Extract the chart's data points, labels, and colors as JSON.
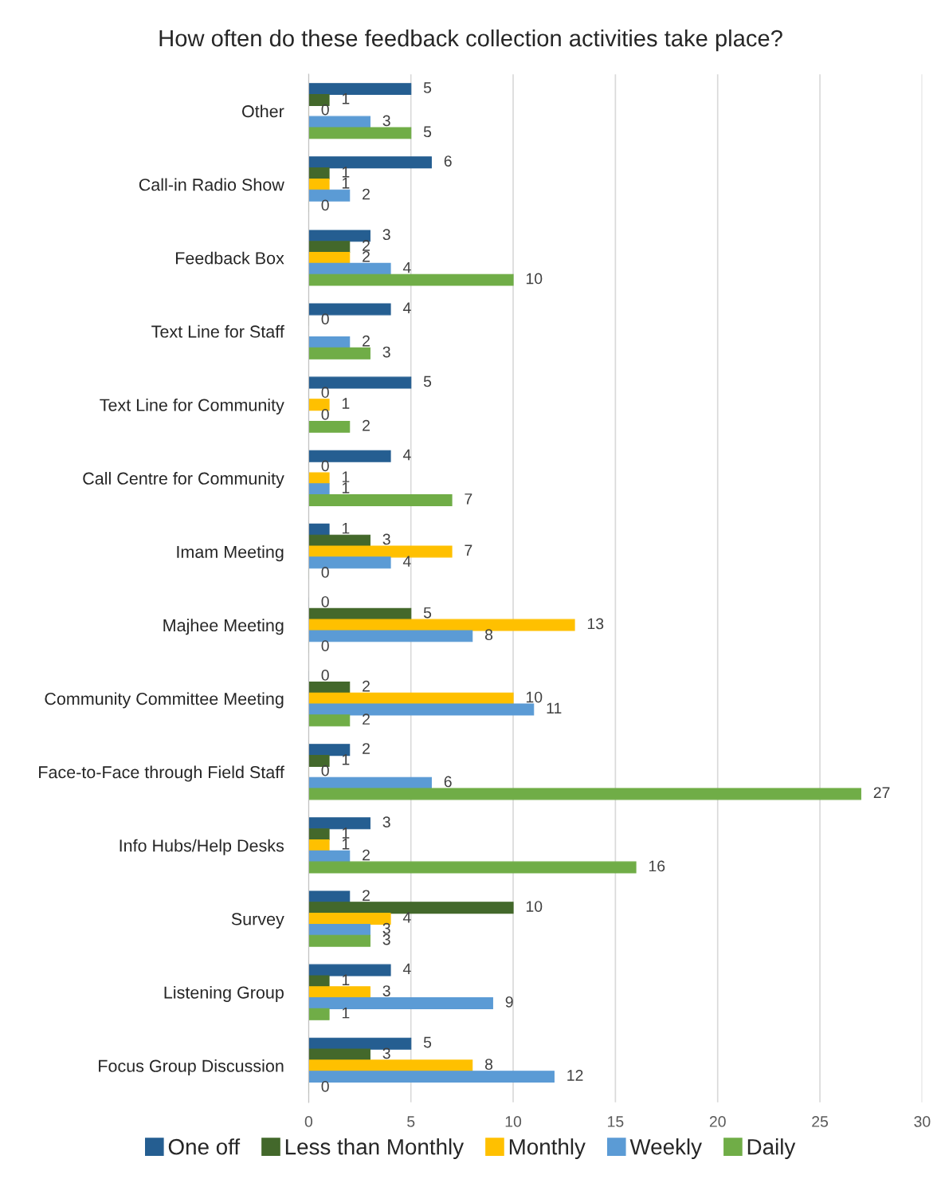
{
  "chart_data": {
    "type": "bar",
    "orientation": "horizontal",
    "title": "How often do these feedback collection activities take place?",
    "categories": [
      "Other",
      "Call-in Radio Show",
      "Feedback Box",
      "Text Line for Staff",
      "Text Line for Community",
      "Call Centre for Community",
      "Imam Meeting",
      "Majhee Meeting",
      "Community Committee Meeting",
      "Face-to-Face through Field Staff",
      "Info Hubs/Help Desks",
      "Survey",
      "Listening Group",
      "Focus Group Discussion"
    ],
    "series": [
      {
        "name": "One off",
        "color": "#255e91",
        "values": [
          5,
          6,
          3,
          4,
          5,
          4,
          1,
          0,
          0,
          2,
          3,
          2,
          4,
          5
        ]
      },
      {
        "name": "Less than Monthly",
        "color": "#43682b",
        "values": [
          1,
          1,
          2,
          0,
          0,
          0,
          3,
          5,
          2,
          1,
          1,
          10,
          1,
          3
        ]
      },
      {
        "name": "Monthly",
        "color": "#ffc000",
        "values": [
          0,
          1,
          2,
          null,
          1,
          1,
          7,
          13,
          10,
          0,
          1,
          4,
          3,
          8
        ]
      },
      {
        "name": "Weekly",
        "color": "#5b9bd5",
        "values": [
          3,
          2,
          4,
          2,
          0,
          1,
          4,
          8,
          11,
          6,
          2,
          3,
          9,
          12
        ]
      },
      {
        "name": "Daily",
        "color": "#70ad47",
        "values": [
          5,
          0,
          10,
          3,
          2,
          7,
          0,
          0,
          2,
          27,
          16,
          3,
          1,
          0
        ]
      }
    ],
    "xlim": [
      0,
      30
    ],
    "xticks": [
      0,
      5,
      10,
      15,
      20,
      25,
      30
    ],
    "grid": "x",
    "legend": "bottom",
    "data_labels": true
  }
}
